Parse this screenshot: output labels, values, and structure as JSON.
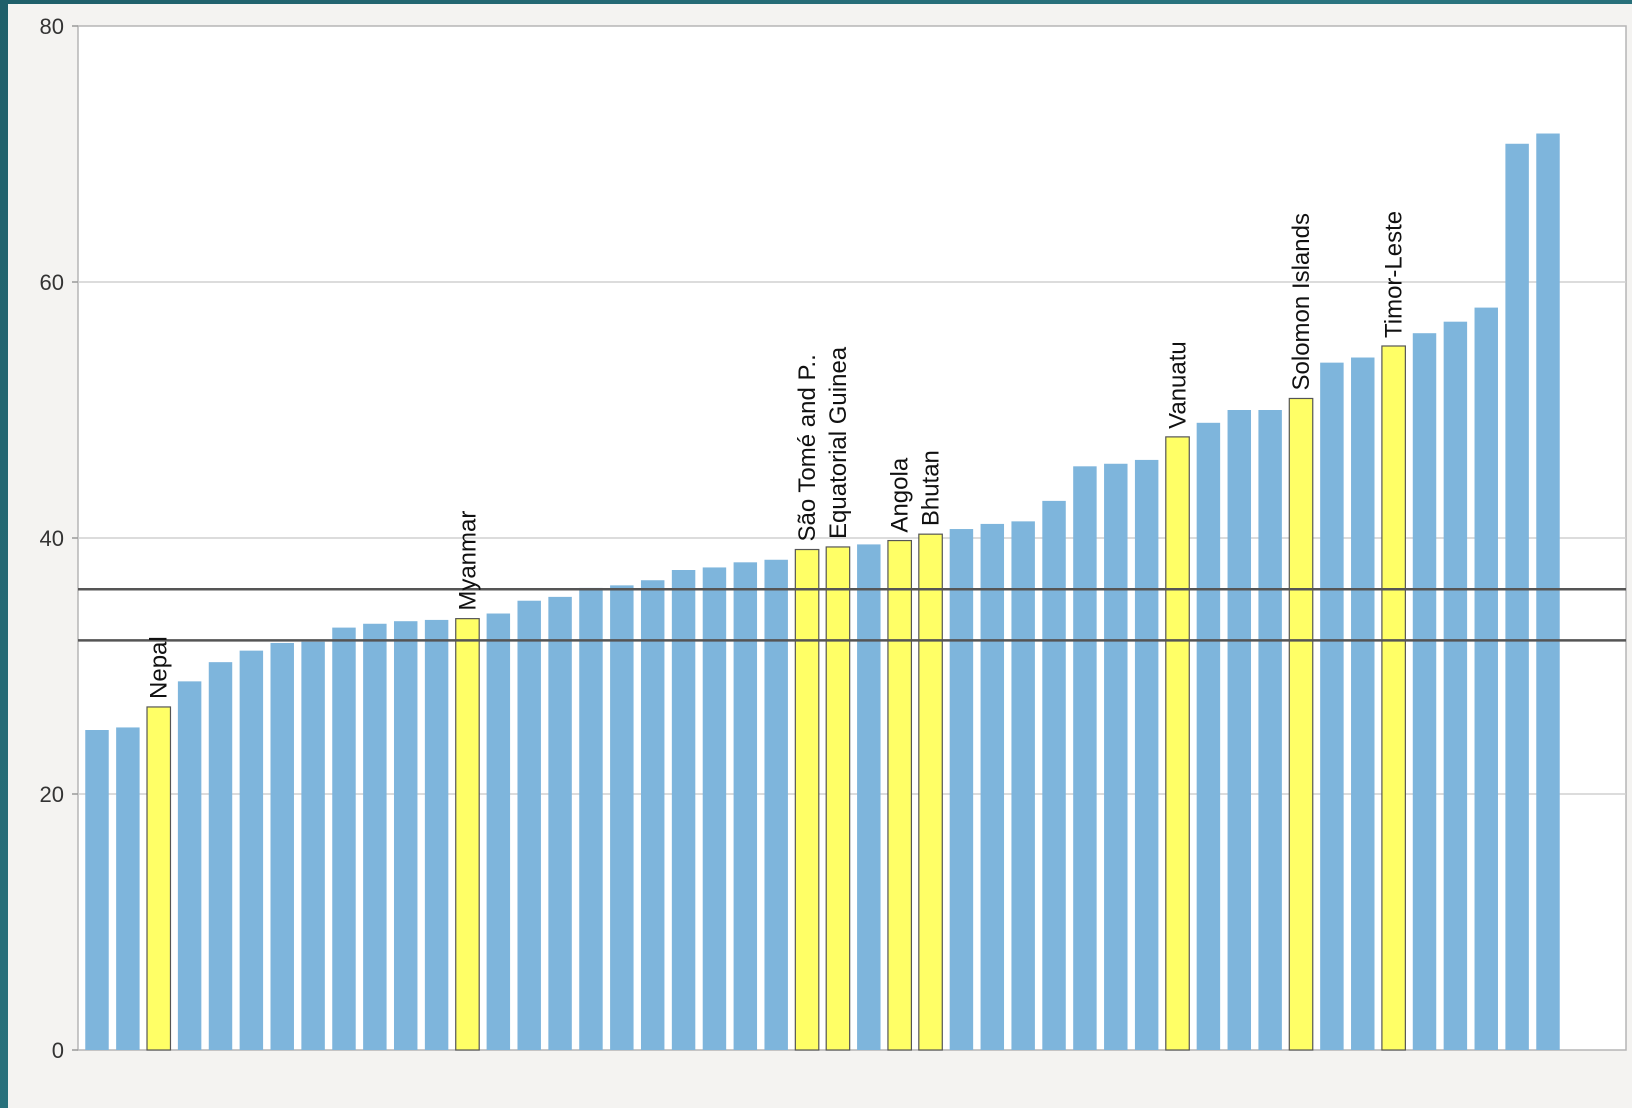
{
  "chart_data": {
    "type": "bar",
    "title": "",
    "xlabel": "",
    "ylabel": "",
    "ylim": [
      0,
      80
    ],
    "yticks": [
      0,
      20,
      40,
      60,
      80
    ],
    "grid": true,
    "colors": {
      "default": "#7eb5dc",
      "highlight": "#ffff66",
      "reference_line": "#555555",
      "gridline": "#d0d0d0"
    },
    "values": [
      25.0,
      25.2,
      26.8,
      28.8,
      30.3,
      31.2,
      31.8,
      31.9,
      33.0,
      33.3,
      33.5,
      33.6,
      33.7,
      34.1,
      35.1,
      35.4,
      36.1,
      36.3,
      36.7,
      37.5,
      37.7,
      38.1,
      38.3,
      39.1,
      39.3,
      39.5,
      39.8,
      40.3,
      40.7,
      41.1,
      41.3,
      42.9,
      45.6,
      45.8,
      46.1,
      47.9,
      49.0,
      50.0,
      50.0,
      50.9,
      53.7,
      54.1,
      55.0,
      56.0,
      56.9,
      58.0,
      70.8,
      71.6
    ],
    "highlights": [
      {
        "index": 2,
        "label": "Nepal"
      },
      {
        "index": 12,
        "label": "Myanmar"
      },
      {
        "index": 23,
        "label": "São Tomé and P.."
      },
      {
        "index": 24,
        "label": "Equatorial Guinea"
      },
      {
        "index": 26,
        "label": "Angola"
      },
      {
        "index": 27,
        "label": "Bhutan"
      },
      {
        "index": 35,
        "label": "Vanuatu"
      },
      {
        "index": 39,
        "label": "Solomon Islands"
      },
      {
        "index": 42,
        "label": "Timor-Leste"
      }
    ],
    "reference_lines": [
      36.0,
      32.0
    ]
  }
}
